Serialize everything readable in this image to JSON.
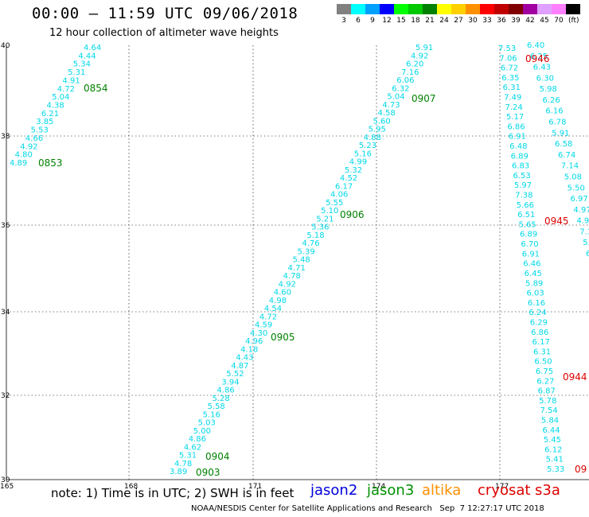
{
  "header": {
    "title": "00:00 — 11:59 UTC 09/06/2018",
    "subtitle": "12 hour collection of altimeter wave heights",
    "unit": "(ft)"
  },
  "scale": [
    {
      "color": "#808080",
      "label": "3"
    },
    {
      "color": "#00ffff",
      "label": "6"
    },
    {
      "color": "#00a0ff",
      "label": "9"
    },
    {
      "color": "#0000ff",
      "label": "12"
    },
    {
      "color": "#00ff00",
      "label": "15"
    },
    {
      "color": "#00c800",
      "label": "18"
    },
    {
      "color": "#008000",
      "label": "21"
    },
    {
      "color": "#ffff00",
      "label": "24"
    },
    {
      "color": "#ffd000",
      "label": "27"
    },
    {
      "color": "#ff9000",
      "label": "30"
    },
    {
      "color": "#ff0000",
      "label": "33"
    },
    {
      "color": "#c00000",
      "label": "36"
    },
    {
      "color": "#800000",
      "label": "39"
    },
    {
      "color": "#a000a0",
      "label": "42"
    },
    {
      "color": "#e0a0ff",
      "label": "45"
    },
    {
      "color": "#ff80ff",
      "label": "70"
    },
    {
      "color": "#000000",
      "label": ""
    }
  ],
  "axes": {
    "lon_labels": [
      "165",
      "168",
      "171",
      "174",
      "177"
    ],
    "lat_labels": [
      "40",
      "38",
      "36",
      "34",
      "32",
      "30"
    ]
  },
  "tracks": [
    {
      "name": "track-0853",
      "values": [
        "4.64",
        "4.44",
        "5.34",
        "5.31",
        "4.91",
        "4.72",
        "5.04",
        "4.38",
        "6.21",
        "3.85",
        "5.53",
        "4.66",
        "4.92",
        "4.80",
        "4.89"
      ],
      "times": [
        "0854",
        "0853"
      ]
    },
    {
      "name": "track-0903",
      "values": [
        "5.91",
        "4.92",
        "6.20",
        "7.16",
        "6.06",
        "6.32",
        "5.04",
        "4.73",
        "4.58",
        "5.60",
        "5.95",
        "4.88",
        "5.23",
        "5.16",
        "4.99",
        "5.32",
        "4.52",
        "6.17",
        "4.06",
        "5.55",
        "5.10",
        "5.21",
        "5.36",
        "5.18",
        "4.76",
        "5.39",
        "5.48",
        "4.71",
        "4.78",
        "4.92",
        "4.60",
        "4.98",
        "4.54",
        "4.72",
        "4.59",
        "4.30",
        "4.96",
        "4.18",
        "4.43",
        "4.87",
        "5.52",
        "3.94",
        "4.86",
        "5.28",
        "5.58",
        "5.16",
        "5.03",
        "5.00",
        "4.86",
        "4.62",
        "5.31",
        "4.78",
        "3.89"
      ],
      "times": [
        "0907",
        "0906",
        "0905",
        "0904",
        "0903"
      ]
    },
    {
      "name": "track-0945-left",
      "values": [
        "7.53",
        "7.06",
        "6.72",
        "6.35",
        "6.31",
        "7.49",
        "7.24",
        "5.17",
        "6.86",
        "6.91",
        "6.48",
        "6.89",
        "6.83",
        "6.53",
        "5.97",
        "7.38",
        "5.66",
        "6.51",
        "5.65",
        "6.89",
        "6.70",
        "6.91",
        "6.46",
        "6.45",
        "5.89",
        "6.03",
        "6.16",
        "6.24",
        "6.29",
        "6.86",
        "6.17",
        "6.31",
        "6.50",
        "6.75",
        "6.27",
        "6.87",
        "5.78",
        "7.54",
        "5.84",
        "6.44",
        "5.45",
        "6.12",
        "5.41",
        "5.33"
      ],
      "times": [
        "0946",
        "0945",
        "0944",
        "09"
      ]
    },
    {
      "name": "track-0945-right",
      "values": [
        "6.40",
        "6.25",
        "6.43",
        "6.30",
        "5.98",
        "6.26",
        "6.16",
        "6.78",
        "5.91",
        "6.58",
        "6.74",
        "7.14",
        "5.08",
        "5.50",
        "6.97",
        "4.97",
        "4.9",
        "7.1",
        "5.",
        "6"
      ]
    }
  ],
  "footer": {
    "note": "note: 1) Time is in UTC; 2) SWH is in feet",
    "sats": [
      {
        "label": "jason2",
        "color": "#0000dd"
      },
      {
        "label": "jason3",
        "color": "#009000"
      },
      {
        "label": "altika",
        "color": "#ff9000"
      },
      {
        "label": "cryosat",
        "color": "#dd0000"
      },
      {
        "label": "s3a",
        "color": "#dd0000"
      }
    ],
    "credit": "NOAA/NESDIS Center for Satellite Applications and Research   Sep  7 12:27:17 UTC 2018"
  }
}
